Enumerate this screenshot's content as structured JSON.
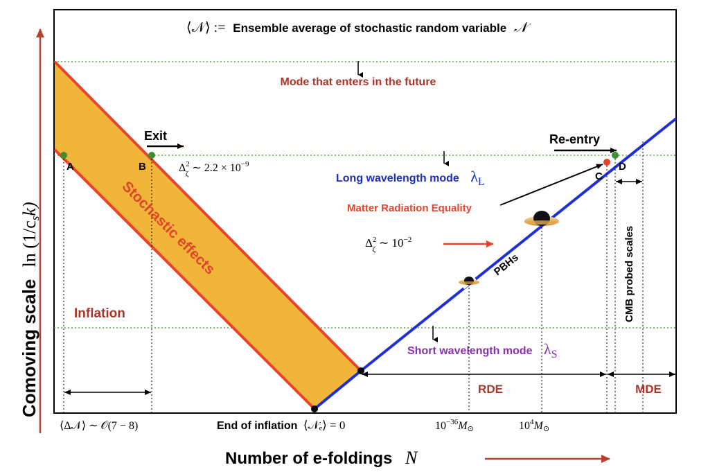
{
  "header": {
    "ensemble_symbol": "⟨𝒩⟩ :=",
    "ensemble_text": "Ensemble average of stochastic random variable",
    "ensemble_var": "𝒩"
  },
  "axes": {
    "y_label_text": "Comoving scale",
    "y_label_math": "ln (1/c",
    "y_label_math_sub": "s",
    "y_label_math_end": "k)",
    "x_label_text": "Number of e-foldings",
    "x_label_var": "N"
  },
  "modes": {
    "future": "Mode that enters in the future",
    "long": "Long wavelength mode",
    "long_symbol": "λ",
    "long_sub": "L",
    "short": "Short wavelength mode",
    "short_symbol": "λ",
    "short_sub": "S"
  },
  "labels": {
    "exit": "Exit",
    "reentry": "Re-entry",
    "point_a": "A",
    "point_b": "B",
    "point_c": "C",
    "point_d": "D",
    "stochastic": "Stochastic effects",
    "inflation": "Inflation",
    "mre": "Matter Radiation Equality",
    "pbhs": "PBHs",
    "cmb": "CMB probed scales",
    "rde": "RDE",
    "mde": "MDE",
    "end_of_inflation": "End of inflation",
    "end_math": "⟨𝒩ₑ⟩ = 0",
    "delta_n": "⟨Δ𝒩⟩ ∼ 𝒪(7 − 8)"
  },
  "spectra": {
    "large_base": "Δ",
    "large_sup": "2",
    "large_sub": "ζ",
    "large_value": "∼ 2.2 × 10",
    "large_exp": "−9",
    "small_base": "Δ",
    "small_sup": "2",
    "small_sub": "ζ",
    "small_value": "∼ 10",
    "small_exp": "−2"
  },
  "masses": {
    "m1_base": "10",
    "m1_exp": "−36",
    "m1_unit": "M",
    "m1_sub": "⊙",
    "m2_base": "10",
    "m2_exp": "4",
    "m2_unit": "M",
    "m2_sub": "⊙"
  },
  "colors": {
    "band_fill": "#F1B539",
    "inflation_line": "#E8432B",
    "horizon_line": "#1E2FD8",
    "dotted_green": "#3E9A2E",
    "label_red": "#A8352A",
    "mode_blue": "#1A2FC0",
    "mode_purple": "#8A2FB0",
    "mre_red": "#E8432B",
    "axis_arrow": "#B5412F",
    "point_green": "#3E8E2E"
  }
}
